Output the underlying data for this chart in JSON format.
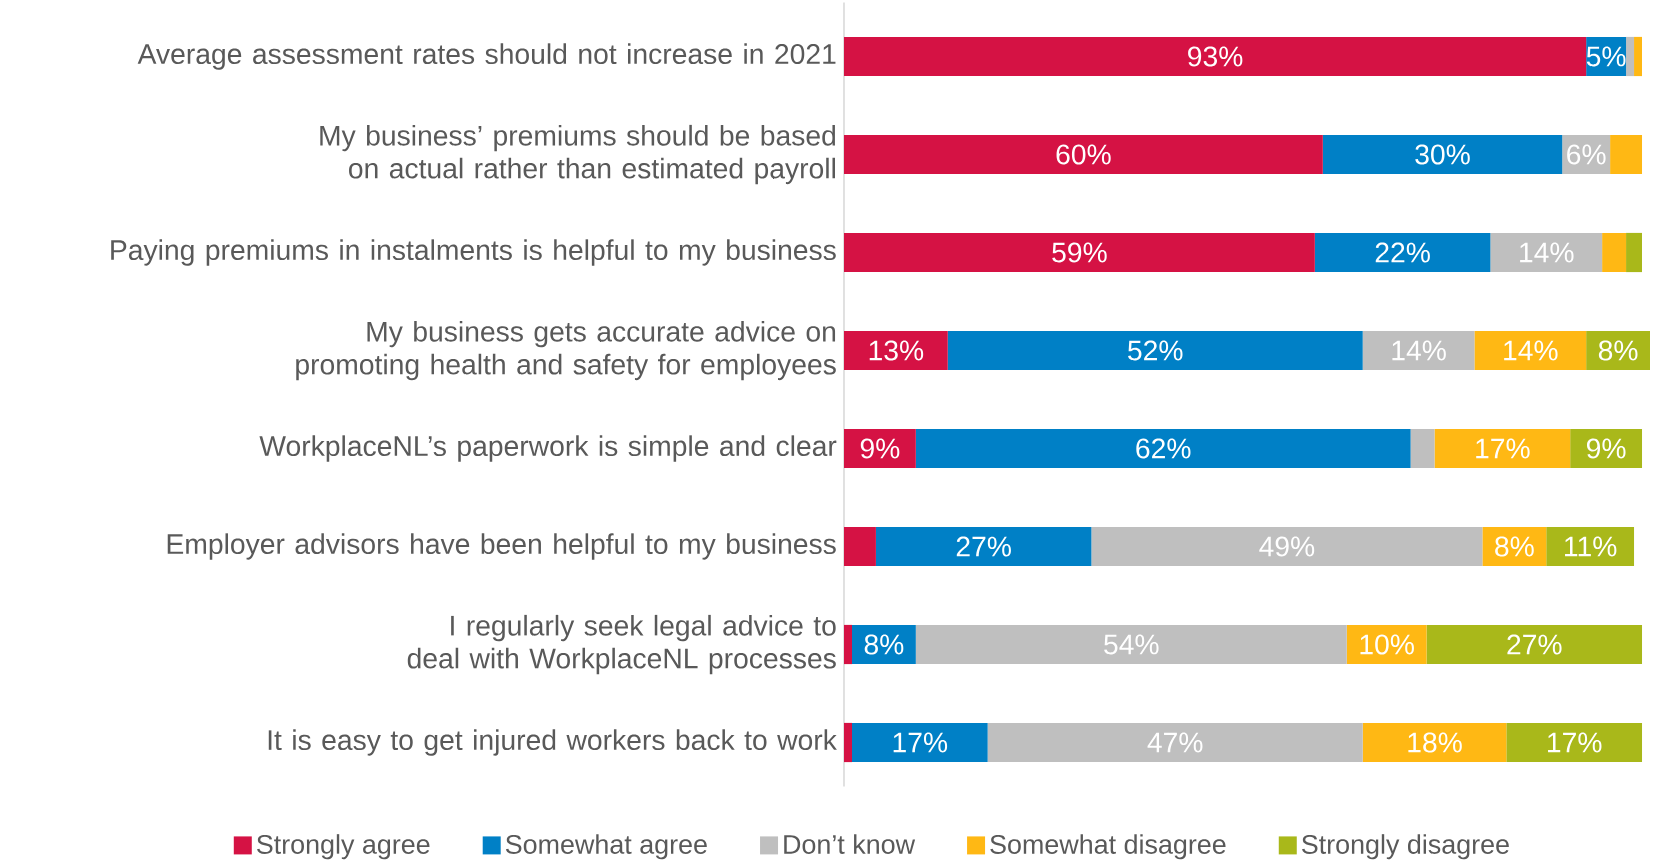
{
  "chart_data": {
    "type": "bar",
    "orientation": "horizontal",
    "stacked": true,
    "legend": "bottom",
    "categories": [
      "Average assessment rates should not increase in 2021",
      "My business’ premiums should be based on actual rather than estimated payroll",
      "Paying premiums in instalments is helpful to my business",
      "My business gets accurate advice on promoting health and safety for employees",
      "WorkplaceNL’s paperwork is simple and clear",
      "Employer advisors have been helpful to my business",
      "I regularly seek legal advice to deal with WorkplaceNL processes",
      "It is easy to get injured workers back to work"
    ],
    "series": [
      {
        "name": "Strongly agree",
        "color": "#d51244",
        "values": [
          93,
          60,
          59,
          13,
          9,
          4,
          1,
          1
        ],
        "value_labels": [
          "93%",
          "60%",
          "59%",
          "13%",
          "9%",
          null,
          null,
          null
        ]
      },
      {
        "name": "Somewhat agree",
        "color": "#0080c6",
        "values": [
          5,
          30,
          22,
          52,
          62,
          27,
          8,
          17
        ],
        "value_labels": [
          "5%",
          "30%",
          "22%",
          "52%",
          "62%",
          "27%",
          "8%",
          "17%"
        ]
      },
      {
        "name": "Don’t know",
        "color": "#bfbfbf",
        "values": [
          1,
          6,
          14,
          14,
          3,
          49,
          54,
          47
        ],
        "value_labels": [
          null,
          "6%",
          "14%",
          "14%",
          null,
          "49%",
          "54%",
          "47%"
        ]
      },
      {
        "name": "Somewhat disagree",
        "color": "#ffb814",
        "values": [
          1,
          4,
          3,
          14,
          17,
          8,
          10,
          18
        ],
        "value_labels": [
          null,
          null,
          null,
          "14%",
          "17%",
          "8%",
          "10%",
          "18%"
        ]
      },
      {
        "name": "Strongly disagree",
        "color": "#a9b81a",
        "values": [
          0,
          0,
          2,
          8,
          9,
          11,
          27,
          17
        ],
        "value_labels": [
          null,
          null,
          null,
          "8%",
          "9%",
          "11%",
          "27%",
          "17%"
        ]
      }
    ]
  }
}
